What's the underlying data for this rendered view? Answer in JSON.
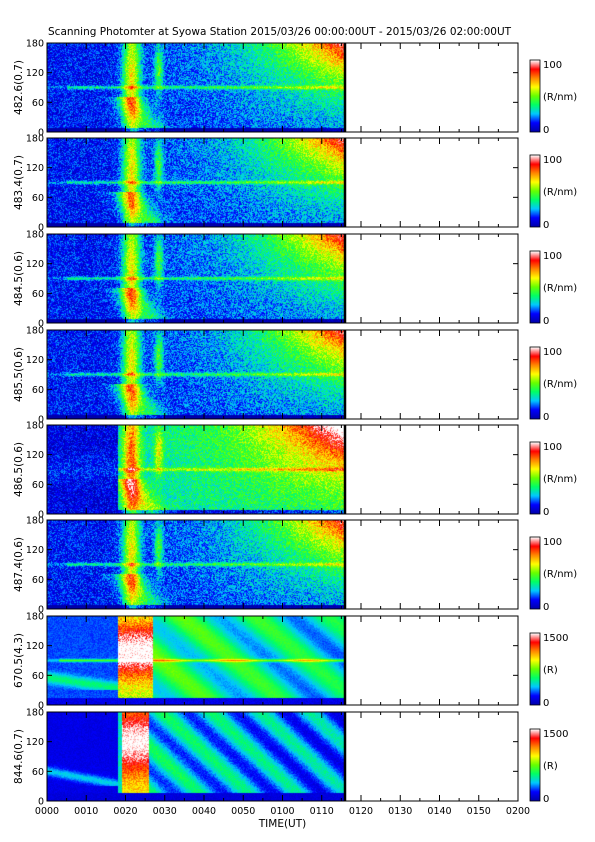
{
  "chart_data": {
    "type": "heatmap",
    "title": "Scanning Photomter at Syowa Station  2015/03/26 00:00:00UT - 2015/03/26 02:00:00UT",
    "xlabel": "TIME(UT)",
    "x_ticks": [
      "0000",
      "0010",
      "0020",
      "0030",
      "0040",
      "0050",
      "0100",
      "0110",
      "0120",
      "0130",
      "0140",
      "0150",
      "0200"
    ],
    "y_ticks": [
      "0",
      "60",
      "120",
      "180"
    ],
    "data_end_time": "0116",
    "colorscale": [
      "#0000aa",
      "#0000ff",
      "#00c8ff",
      "#00ff66",
      "#66ff00",
      "#ffff00",
      "#ff8800",
      "#ff0000",
      "#ffffff"
    ],
    "panels": [
      {
        "ylabel": "482.6(0.7)",
        "cb_max": "100",
        "cb_min": "0",
        "cb_unit": "(R/nm)",
        "mode": "line"
      },
      {
        "ylabel": "483.4(0.7)",
        "cb_max": "100",
        "cb_min": "0",
        "cb_unit": "(R/nm)",
        "mode": "line"
      },
      {
        "ylabel": "484.5(0.6)",
        "cb_max": "100",
        "cb_min": "0",
        "cb_unit": "(R/nm)",
        "mode": "line"
      },
      {
        "ylabel": "485.5(0.6)",
        "cb_max": "100",
        "cb_min": "0",
        "cb_unit": "(R/nm)",
        "mode": "line"
      },
      {
        "ylabel": "486.5(0.6)",
        "cb_max": "100",
        "cb_min": "0",
        "cb_unit": "(R/nm)",
        "mode": "hbeta"
      },
      {
        "ylabel": "487.4(0.6)",
        "cb_max": "100",
        "cb_min": "0",
        "cb_unit": "(R/nm)",
        "mode": "line"
      },
      {
        "ylabel": "670.5(4.3)",
        "cb_max": "1500",
        "cb_min": "0",
        "cb_unit": "(R)",
        "mode": "red"
      },
      {
        "ylabel": "844.6(0.7)",
        "cb_max": "1500",
        "cb_min": "0",
        "cb_unit": "(R)",
        "mode": "nir"
      }
    ]
  }
}
